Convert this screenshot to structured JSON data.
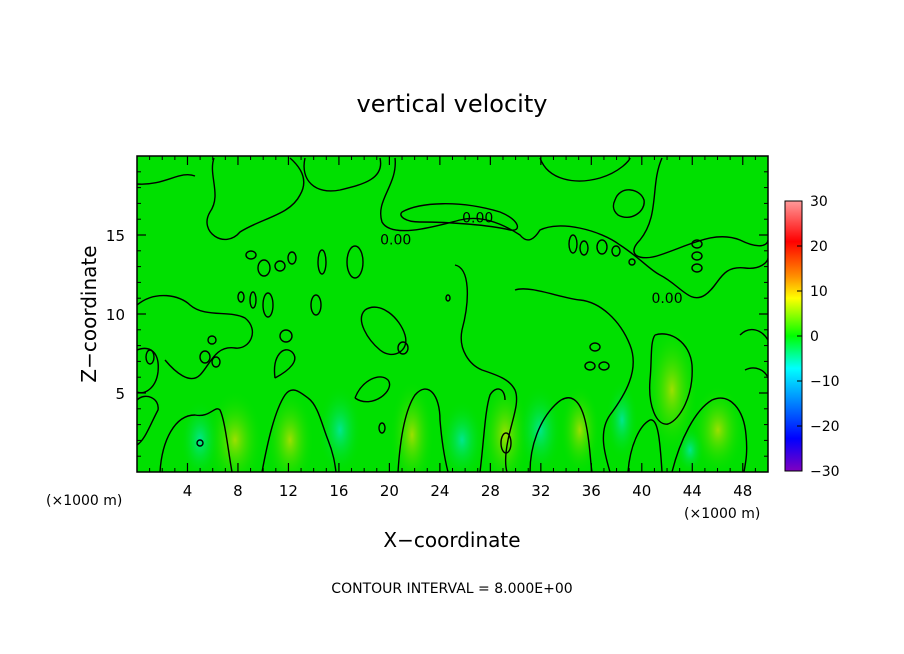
{
  "chart_data": {
    "type": "heatmap",
    "title": "vertical velocity",
    "xlabel": "X−coordinate",
    "ylabel": "Z−coordinate",
    "x_unit_left": "(×1000 m)",
    "x_unit_right": "(×1000 m)",
    "xlim": [
      0,
      50
    ],
    "ylim": [
      0,
      20
    ],
    "x_ticks": [
      4,
      8,
      12,
      16,
      20,
      24,
      28,
      32,
      36,
      40,
      44,
      48
    ],
    "y_ticks": [
      5,
      10,
      15
    ],
    "colorbar": {
      "range": [
        -30,
        30
      ],
      "ticks": [
        "30",
        "20",
        "10",
        "0",
        "−10",
        "−20",
        "−30"
      ],
      "tick_values": [
        30,
        20,
        10,
        0,
        -10,
        -20,
        -30
      ],
      "colors": [
        "#ff9090",
        "#ff0000",
        "#ff7f00",
        "#ffff00",
        "#00ff00",
        "#00ffff",
        "#0080ff",
        "#0000ff",
        "#8000c0"
      ]
    },
    "contour_labels": [
      {
        "text": "0.00",
        "x": 20.5,
        "y": 14.7
      },
      {
        "text": "0.00",
        "x": 27.0,
        "y": 16.1
      },
      {
        "text": "0.00",
        "x": 42.0,
        "y": 11.0
      }
    ],
    "background_color": "#00e000",
    "footer": "CONTOUR INTERVAL = 8.000E+00"
  }
}
